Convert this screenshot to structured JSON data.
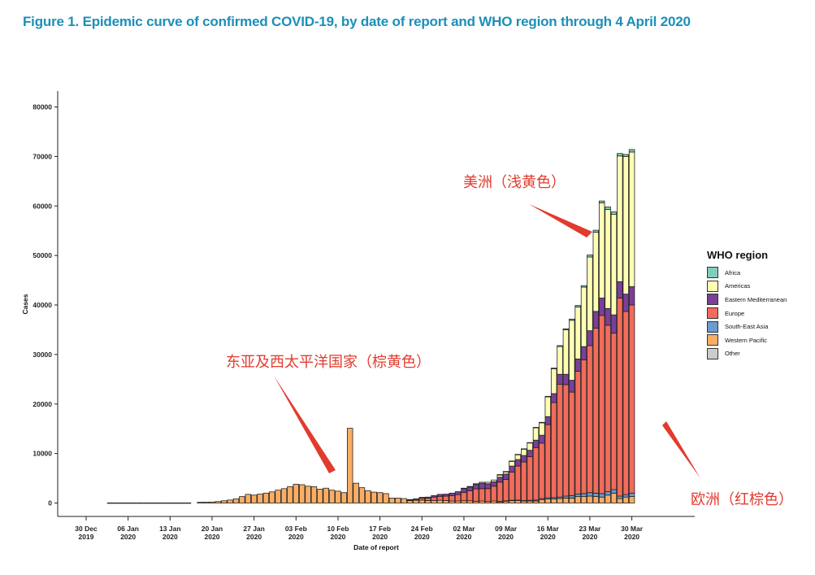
{
  "figure_title": "Figure 1. Epidemic curve of confirmed COVID-19, by date of report and WHO region through 4 April 2020",
  "annotations": {
    "americas": "美洲（浅黄色）",
    "western_pacific": "东亚及西太平洋国家（棕黄色）",
    "europe": "欧洲（红棕色）"
  },
  "legend": {
    "title": "WHO region",
    "items": [
      {
        "label": "Africa",
        "color": "#7fcdbb"
      },
      {
        "label": "Americas",
        "color": "#ffffb3"
      },
      {
        "label": "Eastern Mediterranean",
        "color": "#7b3f98"
      },
      {
        "label": "Europe",
        "color": "#f26b5b"
      },
      {
        "label": "South-East Asia",
        "color": "#6a9ccf"
      },
      {
        "label": "Western Pacific",
        "color": "#f9ae66"
      },
      {
        "label": "Other",
        "color": "#cccccc"
      }
    ]
  },
  "chart_data": {
    "type": "bar",
    "stacked": true,
    "xlabel": "Date of report",
    "ylabel": "Cases",
    "ylim": [
      0,
      82000
    ],
    "yticks": [
      "0",
      "10000",
      "20000",
      "30000",
      "40000",
      "50000",
      "60000",
      "70000",
      "80000"
    ],
    "xticks": [
      {
        "line1": "30 Dec",
        "line2": "2019"
      },
      {
        "line1": "06 Jan",
        "line2": "2020"
      },
      {
        "line1": "13 Jan",
        "line2": "2020"
      },
      {
        "line1": "20 Jan",
        "line2": "2020"
      },
      {
        "line1": "27 Jan",
        "line2": "2020"
      },
      {
        "line1": "03 Feb",
        "line2": "2020"
      },
      {
        "line1": "10 Feb",
        "line2": "2020"
      },
      {
        "line1": "17 Feb",
        "line2": "2020"
      },
      {
        "line1": "24 Feb",
        "line2": "2020"
      },
      {
        "line1": "02 Mar",
        "line2": "2020"
      },
      {
        "line1": "09 Mar",
        "line2": "2020"
      },
      {
        "line1": "16 Mar",
        "line2": "2020"
      },
      {
        "line1": "23 Mar",
        "line2": "2020"
      },
      {
        "line1": "30 Mar",
        "line2": "2020"
      }
    ],
    "first_date": "2020-01-03",
    "series_order": [
      "Western Pacific",
      "South-East Asia",
      "Europe",
      "Eastern Mediterranean",
      "Americas",
      "Africa"
    ],
    "wp": [
      30,
      30,
      30,
      30,
      30,
      30,
      30,
      30,
      30,
      30,
      30,
      30,
      30,
      30,
      0,
      150,
      180,
      200,
      300,
      450,
      600,
      850,
      1300,
      1750,
      1600,
      1800,
      2000,
      2250,
      2600,
      2900,
      3300,
      3800,
      3700,
      3400,
      3300,
      2800,
      3000,
      2600,
      2400,
      2100,
      15100,
      4000,
      3100,
      2500,
      2200,
      2100,
      1900,
      1000,
      1000,
      900,
      500,
      550,
      600,
      500,
      500,
      550,
      500,
      400,
      400,
      450,
      450,
      350,
      400,
      300,
      400,
      300,
      400,
      500,
      500,
      400,
      400,
      400,
      700,
      800,
      800,
      900,
      1000,
      1000,
      1300,
      1300,
      1400,
      1300,
      1200,
      1600,
      2000,
      900,
      1200,
      1300
    ],
    "sea": [
      0,
      0,
      0,
      0,
      0,
      0,
      0,
      0,
      0,
      0,
      0,
      0,
      0,
      0,
      0,
      0,
      0,
      0,
      0,
      0,
      0,
      0,
      0,
      0,
      0,
      0,
      0,
      0,
      0,
      0,
      0,
      0,
      0,
      0,
      0,
      0,
      0,
      0,
      0,
      0,
      0,
      0,
      0,
      0,
      0,
      0,
      0,
      0,
      0,
      0,
      0,
      0,
      0,
      0,
      0,
      0,
      0,
      0,
      0,
      0,
      0,
      0,
      0,
      0,
      0,
      20,
      50,
      60,
      80,
      100,
      150,
      200,
      200,
      250,
      300,
      300,
      400,
      500,
      500,
      600,
      700,
      700,
      700,
      700,
      700,
      500,
      500,
      700
    ],
    "eu": [
      0,
      0,
      0,
      0,
      0,
      0,
      0,
      0,
      0,
      0,
      0,
      0,
      0,
      0,
      0,
      0,
      0,
      0,
      0,
      0,
      0,
      0,
      0,
      0,
      0,
      0,
      0,
      0,
      0,
      0,
      0,
      0,
      0,
      0,
      0,
      0,
      0,
      0,
      0,
      0,
      0,
      0,
      0,
      0,
      0,
      0,
      0,
      0,
      0,
      0,
      100,
      200,
      400,
      500,
      700,
      800,
      900,
      1100,
      1300,
      1700,
      2000,
      2500,
      2500,
      2600,
      3000,
      3900,
      4300,
      5700,
      6900,
      7800,
      8800,
      10600,
      11200,
      14800,
      19200,
      22800,
      22500,
      20900,
      24800,
      27000,
      29700,
      33300,
      36000,
      33600,
      31600,
      40000,
      37000,
      38000,
      40800
    ],
    "em": [
      0,
      0,
      0,
      0,
      0,
      0,
      0,
      0,
      0,
      0,
      0,
      0,
      0,
      0,
      0,
      0,
      0,
      0,
      0,
      0,
      0,
      0,
      0,
      0,
      0,
      0,
      0,
      0,
      0,
      0,
      0,
      0,
      0,
      0,
      0,
      0,
      0,
      0,
      0,
      0,
      0,
      0,
      0,
      0,
      0,
      0,
      0,
      0,
      0,
      0,
      100,
      100,
      150,
      200,
      300,
      400,
      400,
      500,
      600,
      800,
      800,
      900,
      1100,
      1000,
      900,
      1000,
      1100,
      1200,
      1300,
      1300,
      1300,
      1500,
      1600,
      1600,
      1800,
      2000,
      2100,
      2400,
      2500,
      2700,
      3000,
      3400,
      3500,
      3400,
      3700,
      3300,
      3500,
      3700,
      4000
    ],
    "am": [
      0,
      0,
      0,
      0,
      0,
      0,
      0,
      0,
      0,
      0,
      0,
      0,
      0,
      0,
      0,
      0,
      0,
      0,
      0,
      0,
      0,
      0,
      0,
      0,
      0,
      0,
      0,
      0,
      0,
      0,
      0,
      0,
      0,
      0,
      0,
      0,
      0,
      0,
      0,
      0,
      0,
      0,
      0,
      0,
      0,
      0,
      0,
      0,
      0,
      0,
      0,
      0,
      0,
      0,
      0,
      0,
      0,
      0,
      0,
      50,
      100,
      150,
      200,
      300,
      350,
      500,
      500,
      1000,
      1000,
      1300,
      1500,
      2500,
      2500,
      4000,
      5000,
      5600,
      9000,
      12100,
      10500,
      12000,
      14900,
      16000,
      19200,
      20000,
      20300,
      25400,
      27800,
      27200,
      31700
    ],
    "af": [
      0,
      0,
      0,
      0,
      0,
      0,
      0,
      0,
      0,
      0,
      0,
      0,
      0,
      0,
      0,
      0,
      0,
      0,
      0,
      0,
      0,
      0,
      0,
      0,
      0,
      0,
      0,
      0,
      0,
      0,
      0,
      0,
      0,
      0,
      0,
      0,
      0,
      0,
      0,
      0,
      0,
      0,
      0,
      0,
      0,
      0,
      0,
      0,
      0,
      0,
      0,
      0,
      0,
      0,
      0,
      0,
      0,
      0,
      0,
      0,
      0,
      0,
      0,
      0,
      0,
      10,
      20,
      30,
      50,
      50,
      60,
      80,
      100,
      100,
      150,
      200,
      200,
      250,
      300,
      300,
      400,
      400,
      400,
      500,
      500,
      500,
      400,
      500,
      500
    ]
  }
}
